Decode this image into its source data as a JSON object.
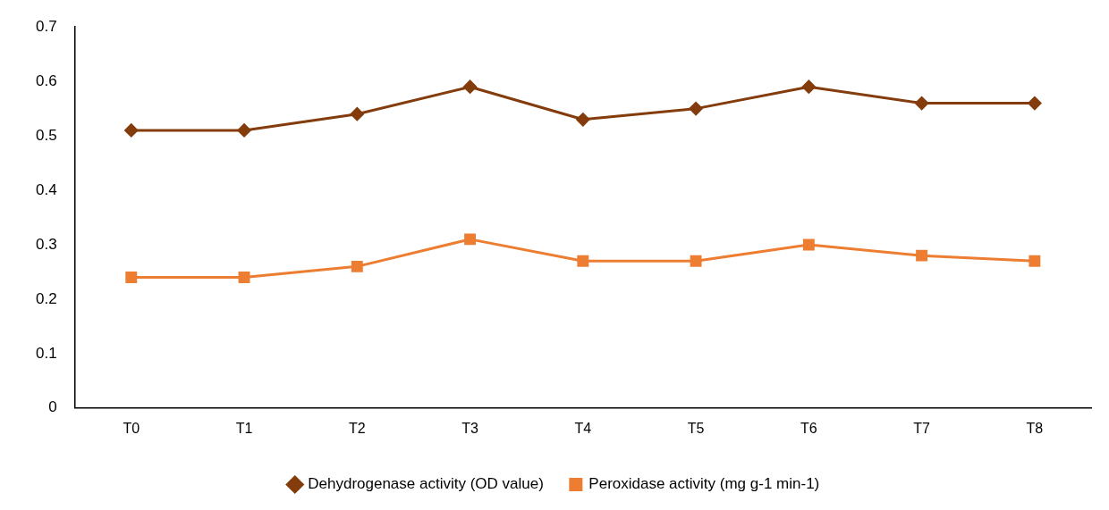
{
  "chart_data": {
    "type": "line",
    "categories": [
      "T0",
      "T1",
      "T2",
      "T3",
      "T4",
      "T5",
      "T6",
      "T7",
      "T8"
    ],
    "series": [
      {
        "name": "Dehydrogenase activity (OD value)",
        "color": "#843c0c",
        "marker": "diamond",
        "values": [
          0.51,
          0.51,
          0.54,
          0.59,
          0.53,
          0.55,
          0.59,
          0.56,
          0.56
        ]
      },
      {
        "name": "Peroxidase activity (mg g-1 min-1)",
        "color": "#ed7d31",
        "marker": "square",
        "values": [
          0.24,
          0.24,
          0.26,
          0.31,
          0.27,
          0.27,
          0.3,
          0.28,
          0.27
        ]
      }
    ],
    "ylim": [
      0,
      0.7
    ],
    "yticks": [
      0,
      0.1,
      0.2,
      0.3,
      0.4,
      0.5,
      0.6,
      0.7
    ],
    "grid": false,
    "legend": "bottom",
    "line_style": "solid"
  }
}
